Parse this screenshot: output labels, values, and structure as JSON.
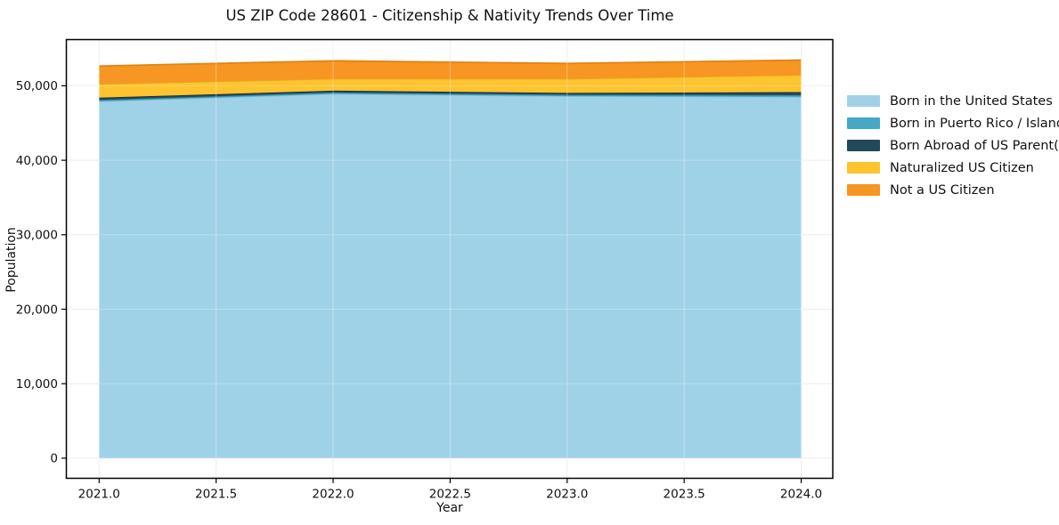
{
  "title": "US ZIP Code 28601 - Citizenship & Nativity Trends Over Time",
  "chart_data": {
    "type": "area",
    "stacked": true,
    "title": "US ZIP Code 28601 - Citizenship & Nativity Trends Over Time",
    "xlabel": "Year",
    "ylabel": "Population",
    "x": [
      2021,
      2022,
      2023,
      2024
    ],
    "series": [
      {
        "name": "Born in the United States",
        "color": "#A0D2E7",
        "edge": "#8CC3DC",
        "values": [
          47900,
          48900,
          48600,
          48500
        ]
      },
      {
        "name": "Born in Puerto Rico / Islands",
        "color": "#46A8C4",
        "edge": "#35879F",
        "values": [
          200,
          200,
          200,
          250
        ]
      },
      {
        "name": "Born Abroad of US Parent(s)",
        "color": "#22485C",
        "edge": "#17333F",
        "values": [
          300,
          250,
          250,
          400
        ]
      },
      {
        "name": "Naturalized US Citizen",
        "color": "#FDC42F",
        "edge": "#E9A81C",
        "values": [
          1850,
          1600,
          1900,
          2300
        ]
      },
      {
        "name": "Not a US Citizen",
        "color": "#F79622",
        "edge": "#E08414",
        "values": [
          2400,
          2400,
          2050,
          2000
        ]
      }
    ],
    "x_tick_values": [
      2021.0,
      2021.5,
      2022.0,
      2022.5,
      2023.0,
      2023.5,
      2024.0
    ],
    "x_tick_labels": [
      "2021.0",
      "2021.5",
      "2022.0",
      "2022.5",
      "2023.0",
      "2023.5",
      "2024.0"
    ],
    "y_tick_values": [
      0,
      10000,
      20000,
      30000,
      40000,
      50000
    ],
    "y_tick_labels": [
      "0",
      "10,000",
      "20,000",
      "30,000",
      "40,000",
      "50,000"
    ],
    "xlim": [
      2020.86,
      2024.135
    ],
    "ylim": [
      -2700,
      56200
    ],
    "grid": true,
    "legend_position": "right-outside",
    "colors": {
      "grid": "#E8E8E8",
      "spine": "#000000",
      "background": "#FFFFFF"
    }
  }
}
